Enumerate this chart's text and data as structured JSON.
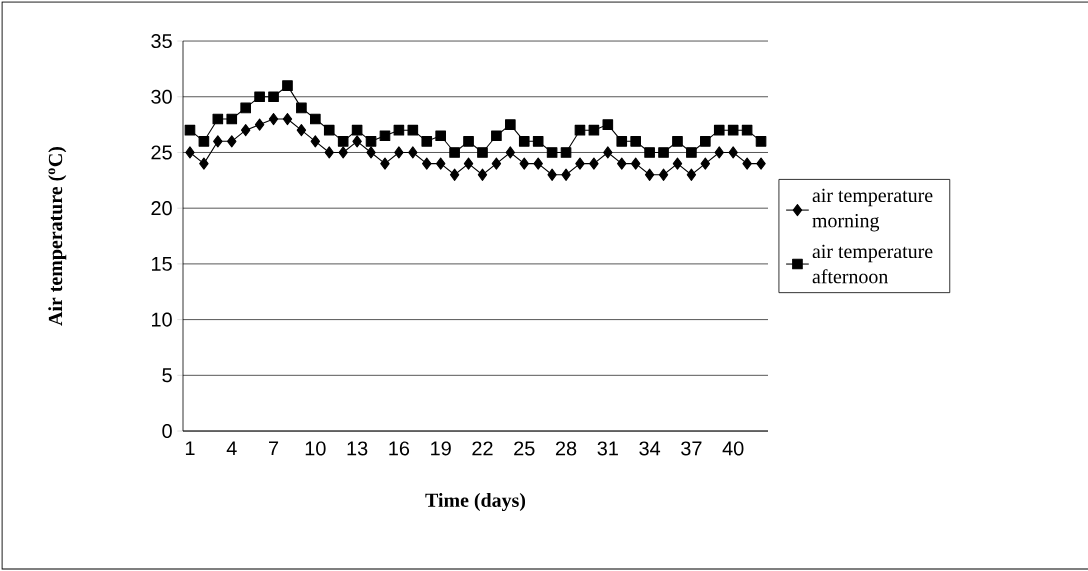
{
  "chart_data": {
    "type": "line",
    "xlabel": "Time (days)",
    "ylabel": "Air temperature ($^{o}$C)",
    "categories": [
      "1",
      null,
      null,
      "4",
      null,
      null,
      "7",
      null,
      null,
      "10",
      null,
      null,
      "13",
      null,
      null,
      "16",
      null,
      null,
      "19",
      null,
      null,
      "22",
      null,
      null,
      "25",
      null,
      null,
      "28",
      null,
      null,
      "31",
      null,
      null,
      "34",
      null,
      null,
      "37",
      null,
      null,
      "40",
      null,
      null
    ],
    "series": [
      {
        "name": "air temperature morning",
        "color": "#000000",
        "marker": "diamond",
        "values": [
          25,
          24,
          26,
          26,
          27,
          27.5,
          28,
          28,
          27,
          26,
          25,
          25,
          26,
          25,
          24,
          25,
          25,
          24,
          24,
          23,
          24,
          23,
          24,
          25,
          24,
          24,
          23,
          23,
          24,
          24,
          25,
          24,
          24,
          23,
          23,
          24,
          23,
          24,
          25,
          25,
          24,
          24
        ]
      },
      {
        "name": "air temperature afternoon",
        "color": "#000000",
        "marker": "square",
        "values": [
          27,
          26,
          28,
          28,
          29,
          30,
          30,
          31,
          29,
          28,
          27,
          26,
          27,
          26,
          26.5,
          27,
          27,
          26,
          26.5,
          25,
          26,
          25,
          26.5,
          27.5,
          26,
          26,
          25,
          25,
          27,
          27,
          27.5,
          26,
          26,
          25,
          25,
          26,
          25,
          26,
          27,
          27,
          27,
          26
        ]
      }
    ],
    "ylim": [
      0,
      35
    ],
    "yticks": [
      0,
      5,
      10,
      15,
      20,
      25,
      30,
      35
    ],
    "grid": "y",
    "legend": "right",
    "line_style": "solid"
  }
}
